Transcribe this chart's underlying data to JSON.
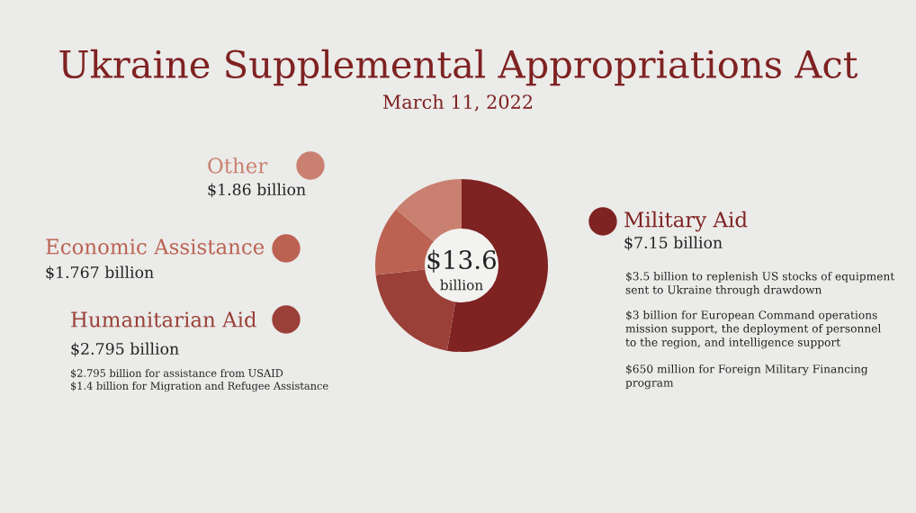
{
  "chart_data": {
    "type": "donut",
    "title": "Ukraine Supplemental Appropriations Act",
    "subtitle": "March 11, 2022",
    "categories": [
      "Military Aid",
      "Humanitarian Aid",
      "Economic Assistance",
      "Other"
    ],
    "values": [
      7.15,
      2.795,
      1.767,
      1.86
    ],
    "legend": "left",
    "colors": [
      "#7f2222",
      "#9a4038",
      "#bb6252",
      "#c98070"
    ],
    "value_labels": [
      "$7.15 billion",
      "$2.795 billion",
      "$1.767 billion",
      "$1.86 billion"
    ],
    "annotations": [
      "$13.6",
      "billion",
      "$3.5 billion to replenish US stocks of equipment\nsent to Ukraine through drawdown",
      "$3 billion for European Command operations\nmission support, the deployment of personnel\nto the region, and intelligence support",
      "$650 million for Foreign Military Financing\nprogram",
      "$2.795 billion for assistance from USAID\n$1.4 billion for Migration and Refugee Assistance"
    ]
  }
}
